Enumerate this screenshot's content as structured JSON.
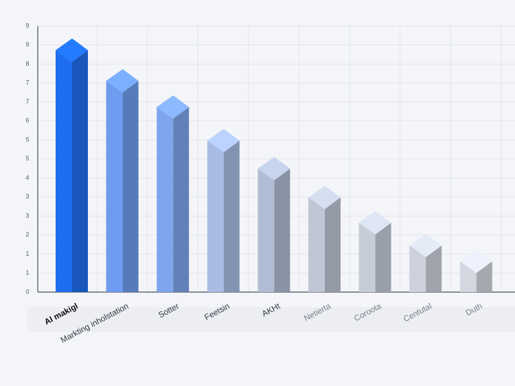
{
  "chart_data": {
    "type": "bar3d",
    "categories": [
      "AI makigl",
      "Markting inholstation",
      "Sotter",
      "Feetsin",
      "AKHt",
      "Netierta",
      "Coroota",
      "Centutal",
      "Duth"
    ],
    "values": [
      8.18,
      7.09,
      6.16,
      4.97,
      3.97,
      2.95,
      2.05,
      1.24,
      0.68
    ],
    "colors": [
      "#1f6ef0",
      "#6f9cf0",
      "#7ea5ec",
      "#a8bce4",
      "#b1bdd4",
      "#bfc7d5",
      "#c6cdd9",
      "#ccd1dc",
      "#d3d7e0"
    ],
    "ylim": [
      0,
      9.45
    ],
    "yticks": [
      0,
      {
        "value": 0.68,
        "label": "1"
      },
      {
        "value": 1.35,
        "label": "1"
      },
      {
        "value": 2.03,
        "label": "2"
      },
      {
        "value": 2.7,
        "label": "3"
      },
      {
        "value": 3.38,
        "label": "3"
      },
      {
        "value": 4.05,
        "label": "4"
      },
      {
        "value": 4.73,
        "label": "5"
      },
      {
        "value": 5.4,
        "label": "5"
      },
      {
        "value": 6.08,
        "label": "6"
      },
      {
        "value": 6.75,
        "label": "7"
      },
      {
        "value": 7.43,
        "label": "7"
      },
      {
        "value": 8.1,
        "label": "8"
      },
      {
        "value": 8.78,
        "label": "9"
      },
      {
        "value": 9.45,
        "label": "9"
      }
    ],
    "grid": true
  }
}
